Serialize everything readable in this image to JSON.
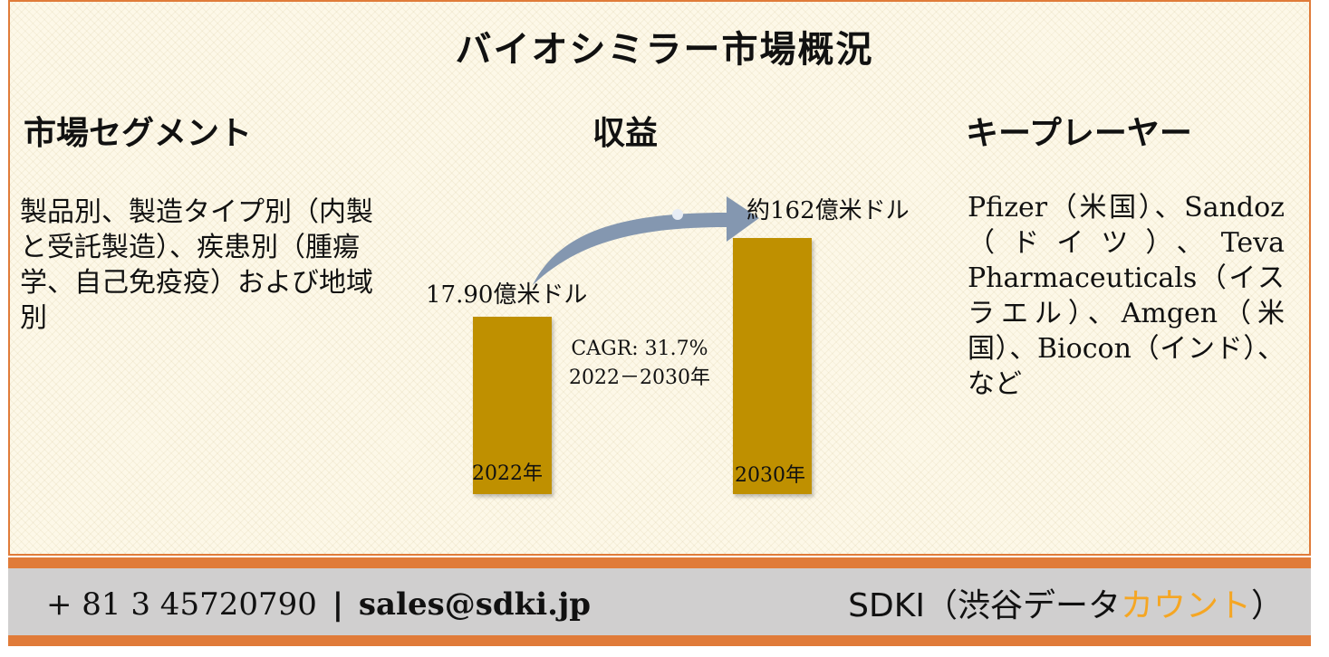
{
  "title": "バイオシミラー市場概況",
  "segment": {
    "heading": "市場セグメント",
    "text": "製品別、製造タイプ別（内製と受託製造）、疾患別（腫瘍学、自己免疫疫）および地域別"
  },
  "revenue": {
    "heading": "収益",
    "value_2022": "17.90億米ドル",
    "value_2030": "約162億米ドル",
    "label_2022": "2022年",
    "label_2030": "2030年",
    "cagr_line1": "CAGR: 31.7%",
    "cagr_line2": "2022－2030年"
  },
  "key_players": {
    "heading": "キープレーヤー",
    "text": "Pfizer（米国）、Sandoz（ドイツ）、Teva Pharmaceuticals（イスラエル）、Amgen（米国）、Biocon（インド）、など"
  },
  "footer": {
    "phone": "+ 81 3 45720790",
    "separator": "|",
    "email": "sales@sdki.jp",
    "brand_prefix": "SDKI（渋谷データ",
    "brand_accent": "カウント",
    "brand_suffix": "）"
  },
  "colors": {
    "bar": "#bf9000",
    "border": "#e07b39",
    "arrow": "#8497b0",
    "accent": "#f5a623"
  }
}
